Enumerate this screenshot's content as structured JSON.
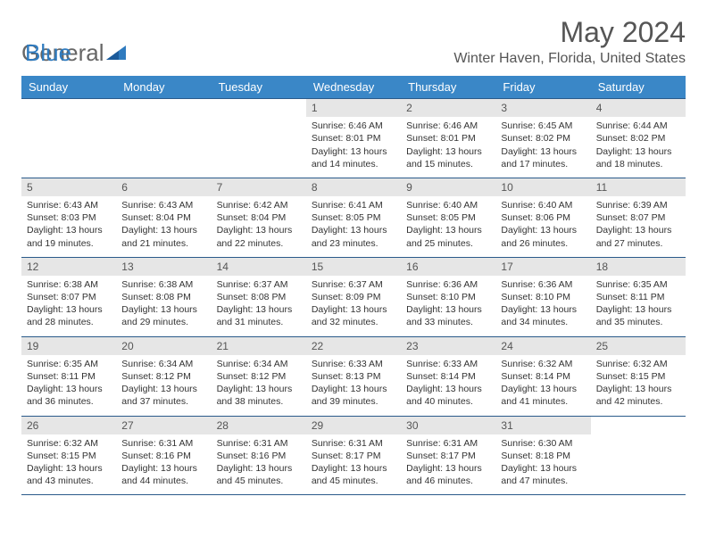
{
  "logo": {
    "text1": "General",
    "text2": "Blue"
  },
  "title": "May 2024",
  "location": "Winter Haven, Florida, United States",
  "colors": {
    "header_bg": "#3a87c7",
    "header_text": "#ffffff",
    "border": "#2a5a8a",
    "daynum_bg": "#e6e6e6",
    "text": "#333333"
  },
  "day_names": [
    "Sunday",
    "Monday",
    "Tuesday",
    "Wednesday",
    "Thursday",
    "Friday",
    "Saturday"
  ],
  "weeks": [
    [
      {
        "empty": true
      },
      {
        "empty": true
      },
      {
        "empty": true
      },
      {
        "n": "1",
        "sr": "6:46 AM",
        "ss": "8:01 PM",
        "dl": "13 hours and 14 minutes."
      },
      {
        "n": "2",
        "sr": "6:46 AM",
        "ss": "8:01 PM",
        "dl": "13 hours and 15 minutes."
      },
      {
        "n": "3",
        "sr": "6:45 AM",
        "ss": "8:02 PM",
        "dl": "13 hours and 17 minutes."
      },
      {
        "n": "4",
        "sr": "6:44 AM",
        "ss": "8:02 PM",
        "dl": "13 hours and 18 minutes."
      }
    ],
    [
      {
        "n": "5",
        "sr": "6:43 AM",
        "ss": "8:03 PM",
        "dl": "13 hours and 19 minutes."
      },
      {
        "n": "6",
        "sr": "6:43 AM",
        "ss": "8:04 PM",
        "dl": "13 hours and 21 minutes."
      },
      {
        "n": "7",
        "sr": "6:42 AM",
        "ss": "8:04 PM",
        "dl": "13 hours and 22 minutes."
      },
      {
        "n": "8",
        "sr": "6:41 AM",
        "ss": "8:05 PM",
        "dl": "13 hours and 23 minutes."
      },
      {
        "n": "9",
        "sr": "6:40 AM",
        "ss": "8:05 PM",
        "dl": "13 hours and 25 minutes."
      },
      {
        "n": "10",
        "sr": "6:40 AM",
        "ss": "8:06 PM",
        "dl": "13 hours and 26 minutes."
      },
      {
        "n": "11",
        "sr": "6:39 AM",
        "ss": "8:07 PM",
        "dl": "13 hours and 27 minutes."
      }
    ],
    [
      {
        "n": "12",
        "sr": "6:38 AM",
        "ss": "8:07 PM",
        "dl": "13 hours and 28 minutes."
      },
      {
        "n": "13",
        "sr": "6:38 AM",
        "ss": "8:08 PM",
        "dl": "13 hours and 29 minutes."
      },
      {
        "n": "14",
        "sr": "6:37 AM",
        "ss": "8:08 PM",
        "dl": "13 hours and 31 minutes."
      },
      {
        "n": "15",
        "sr": "6:37 AM",
        "ss": "8:09 PM",
        "dl": "13 hours and 32 minutes."
      },
      {
        "n": "16",
        "sr": "6:36 AM",
        "ss": "8:10 PM",
        "dl": "13 hours and 33 minutes."
      },
      {
        "n": "17",
        "sr": "6:36 AM",
        "ss": "8:10 PM",
        "dl": "13 hours and 34 minutes."
      },
      {
        "n": "18",
        "sr": "6:35 AM",
        "ss": "8:11 PM",
        "dl": "13 hours and 35 minutes."
      }
    ],
    [
      {
        "n": "19",
        "sr": "6:35 AM",
        "ss": "8:11 PM",
        "dl": "13 hours and 36 minutes."
      },
      {
        "n": "20",
        "sr": "6:34 AM",
        "ss": "8:12 PM",
        "dl": "13 hours and 37 minutes."
      },
      {
        "n": "21",
        "sr": "6:34 AM",
        "ss": "8:12 PM",
        "dl": "13 hours and 38 minutes."
      },
      {
        "n": "22",
        "sr": "6:33 AM",
        "ss": "8:13 PM",
        "dl": "13 hours and 39 minutes."
      },
      {
        "n": "23",
        "sr": "6:33 AM",
        "ss": "8:14 PM",
        "dl": "13 hours and 40 minutes."
      },
      {
        "n": "24",
        "sr": "6:32 AM",
        "ss": "8:14 PM",
        "dl": "13 hours and 41 minutes."
      },
      {
        "n": "25",
        "sr": "6:32 AM",
        "ss": "8:15 PM",
        "dl": "13 hours and 42 minutes."
      }
    ],
    [
      {
        "n": "26",
        "sr": "6:32 AM",
        "ss": "8:15 PM",
        "dl": "13 hours and 43 minutes."
      },
      {
        "n": "27",
        "sr": "6:31 AM",
        "ss": "8:16 PM",
        "dl": "13 hours and 44 minutes."
      },
      {
        "n": "28",
        "sr": "6:31 AM",
        "ss": "8:16 PM",
        "dl": "13 hours and 45 minutes."
      },
      {
        "n": "29",
        "sr": "6:31 AM",
        "ss": "8:17 PM",
        "dl": "13 hours and 45 minutes."
      },
      {
        "n": "30",
        "sr": "6:31 AM",
        "ss": "8:17 PM",
        "dl": "13 hours and 46 minutes."
      },
      {
        "n": "31",
        "sr": "6:30 AM",
        "ss": "8:18 PM",
        "dl": "13 hours and 47 minutes."
      },
      {
        "empty": true
      }
    ]
  ],
  "labels": {
    "sunrise": "Sunrise:",
    "sunset": "Sunset:",
    "daylight": "Daylight:"
  }
}
